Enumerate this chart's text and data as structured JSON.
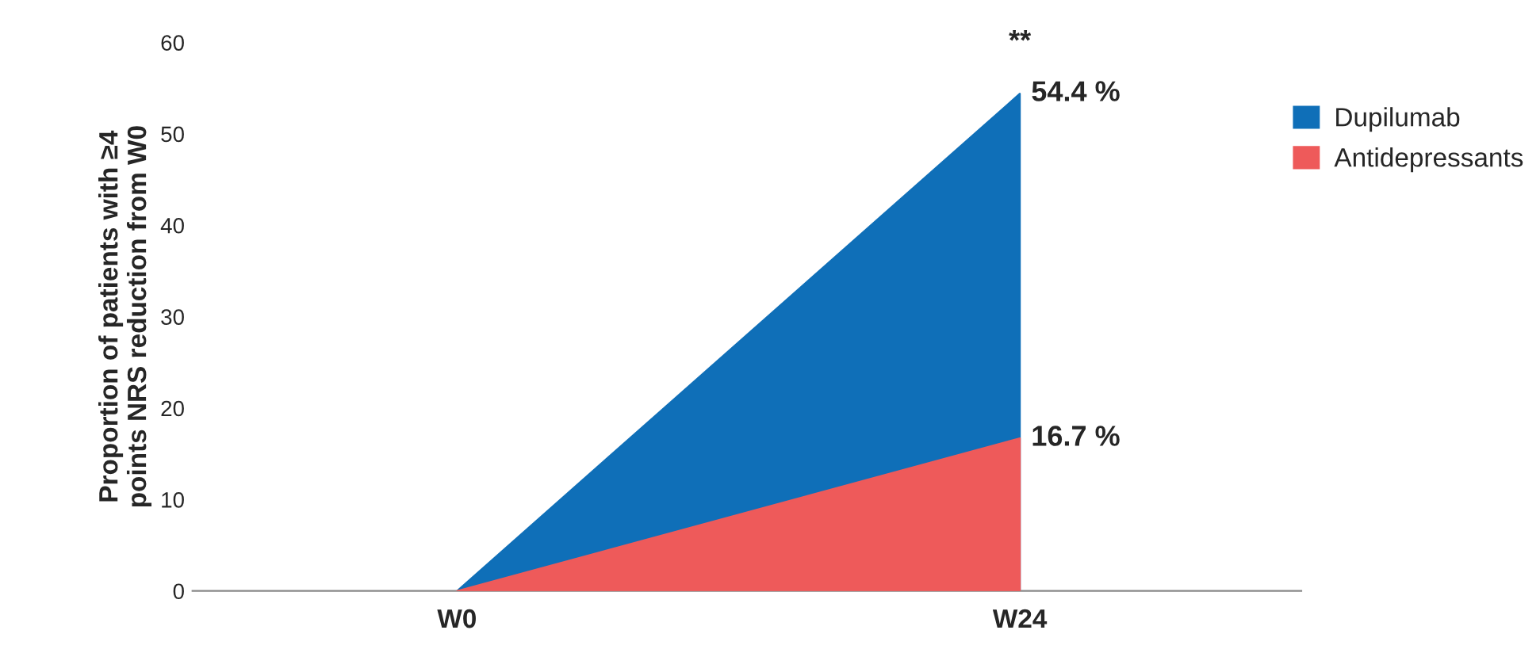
{
  "chart_data": {
    "type": "area",
    "ylabel": "Proportion of patients with ≥4\npoints NRS reduction from W0",
    "categories": [
      "W0",
      "W24"
    ],
    "series": [
      {
        "name": "Dupilumab",
        "color": "#0f6fb8",
        "values": [
          0,
          54.4
        ],
        "value_labels": [
          null,
          "54.4 %"
        ]
      },
      {
        "name": "Antidepressants",
        "color": "#ee5a5a",
        "values": [
          0,
          16.7
        ],
        "value_labels": [
          null,
          "16.7 %"
        ]
      }
    ],
    "annotations": [
      "**"
    ],
    "ylim": [
      0,
      60
    ],
    "yticks": [
      0,
      10,
      20,
      30,
      40,
      50,
      60
    ],
    "grid": false,
    "legend": "right"
  }
}
